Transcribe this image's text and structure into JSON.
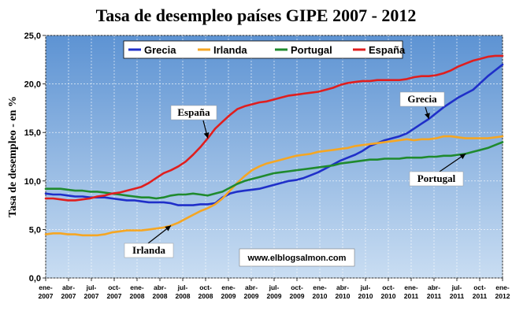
{
  "chart_data": {
    "type": "line",
    "title": "Tasa de desempleo países GIPE  2007 - 2012",
    "ylabel": "Tasa de desempleo - en %",
    "ylim": [
      0,
      25
    ],
    "yticks": [
      "0,0",
      "5,0",
      "10,0",
      "15,0",
      "20,0",
      "25,0"
    ],
    "ytick_values": [
      0,
      5,
      10,
      15,
      20,
      25
    ],
    "xticks": [
      [
        "ene-",
        "2007"
      ],
      [
        "abr-",
        "2007"
      ],
      [
        "jul-",
        "2007"
      ],
      [
        "oct-",
        "2007"
      ],
      [
        "ene-",
        "2008"
      ],
      [
        "abr-",
        "2008"
      ],
      [
        "jul-",
        "2008"
      ],
      [
        "oct-",
        "2008"
      ],
      [
        "ene-",
        "2009"
      ],
      [
        "abr-",
        "2009"
      ],
      [
        "jul-",
        "2009"
      ],
      [
        "oct-",
        "2009"
      ],
      [
        "ene-",
        "2010"
      ],
      [
        "abr-",
        "2010"
      ],
      [
        "jul-",
        "2010"
      ],
      [
        "oct-",
        "2010"
      ],
      [
        "ene-",
        "2011"
      ],
      [
        "abr-",
        "2011"
      ],
      [
        "jul-",
        "2011"
      ],
      [
        "oct-",
        "2011"
      ],
      [
        "ene-",
        "2012"
      ]
    ],
    "grid": true,
    "legend_position": "top-center",
    "series": [
      {
        "name": "Grecia",
        "color": "#1f2fc9",
        "values": [
          8.7,
          8.6,
          8.6,
          8.5,
          8.4,
          8.4,
          8.3,
          8.3,
          8.3,
          8.2,
          8.1,
          8.0,
          8.0,
          7.9,
          7.8,
          7.8,
          7.8,
          7.7,
          7.5,
          7.5,
          7.5,
          7.6,
          7.6,
          7.7,
          8.3,
          8.7,
          8.9,
          9.0,
          9.1,
          9.2,
          9.4,
          9.6,
          9.8,
          10.0,
          10.1,
          10.3,
          10.6,
          10.9,
          11.3,
          11.7,
          12.1,
          12.4,
          12.7,
          13.1,
          13.6,
          13.9,
          14.2,
          14.4,
          14.6,
          14.9,
          15.4,
          15.9,
          16.4,
          17.0,
          17.6,
          18.1,
          18.6,
          19.0,
          19.4,
          20.1,
          20.8,
          21.4,
          22.0
        ]
      },
      {
        "name": "Irlanda",
        "color": "#f5a623",
        "values": [
          4.5,
          4.6,
          4.6,
          4.5,
          4.5,
          4.4,
          4.4,
          4.4,
          4.5,
          4.7,
          4.8,
          4.9,
          4.9,
          4.9,
          5.0,
          5.1,
          5.2,
          5.4,
          5.7,
          6.1,
          6.5,
          6.9,
          7.2,
          7.6,
          8.2,
          9.0,
          9.8,
          10.5,
          11.1,
          11.5,
          11.8,
          12.0,
          12.2,
          12.4,
          12.6,
          12.7,
          12.8,
          13.0,
          13.1,
          13.2,
          13.3,
          13.4,
          13.6,
          13.7,
          13.8,
          13.9,
          14.0,
          14.1,
          14.2,
          14.3,
          14.2,
          14.3,
          14.3,
          14.4,
          14.6,
          14.6,
          14.5,
          14.4,
          14.4,
          14.4,
          14.4,
          14.5,
          14.6
        ]
      },
      {
        "name": "Portugal",
        "color": "#1f8a2e",
        "values": [
          9.2,
          9.2,
          9.2,
          9.1,
          9.0,
          9.0,
          8.9,
          8.9,
          8.8,
          8.7,
          8.6,
          8.5,
          8.4,
          8.3,
          8.3,
          8.2,
          8.3,
          8.5,
          8.6,
          8.6,
          8.7,
          8.6,
          8.5,
          8.7,
          8.9,
          9.3,
          9.7,
          10.0,
          10.2,
          10.4,
          10.6,
          10.8,
          10.9,
          11.0,
          11.1,
          11.2,
          11.3,
          11.4,
          11.5,
          11.6,
          11.8,
          11.9,
          12.0,
          12.1,
          12.2,
          12.2,
          12.3,
          12.3,
          12.3,
          12.4,
          12.4,
          12.4,
          12.5,
          12.5,
          12.6,
          12.6,
          12.7,
          12.8,
          13.0,
          13.2,
          13.4,
          13.7,
          14.0
        ]
      },
      {
        "name": "España",
        "color": "#e01e1e",
        "values": [
          8.2,
          8.2,
          8.1,
          8.0,
          8.0,
          8.1,
          8.2,
          8.4,
          8.5,
          8.7,
          8.8,
          9.0,
          9.2,
          9.4,
          9.8,
          10.3,
          10.8,
          11.1,
          11.5,
          12.0,
          12.7,
          13.5,
          14.4,
          15.4,
          16.1,
          16.8,
          17.4,
          17.7,
          17.9,
          18.1,
          18.2,
          18.4,
          18.6,
          18.8,
          18.9,
          19.0,
          19.1,
          19.2,
          19.4,
          19.6,
          19.9,
          20.1,
          20.2,
          20.3,
          20.3,
          20.4,
          20.4,
          20.4,
          20.4,
          20.5,
          20.7,
          20.8,
          20.8,
          20.9,
          21.1,
          21.4,
          21.8,
          22.1,
          22.4,
          22.6,
          22.8,
          22.9,
          22.9
        ]
      }
    ],
    "annotations": [
      {
        "text": "España",
        "series": "España"
      },
      {
        "text": "Grecia",
        "series": "Grecia"
      },
      {
        "text": "Irlanda",
        "series": "Irlanda"
      },
      {
        "text": "Portugal",
        "series": "Portugal"
      }
    ],
    "watermark": "www.elblogsalmon.com"
  }
}
